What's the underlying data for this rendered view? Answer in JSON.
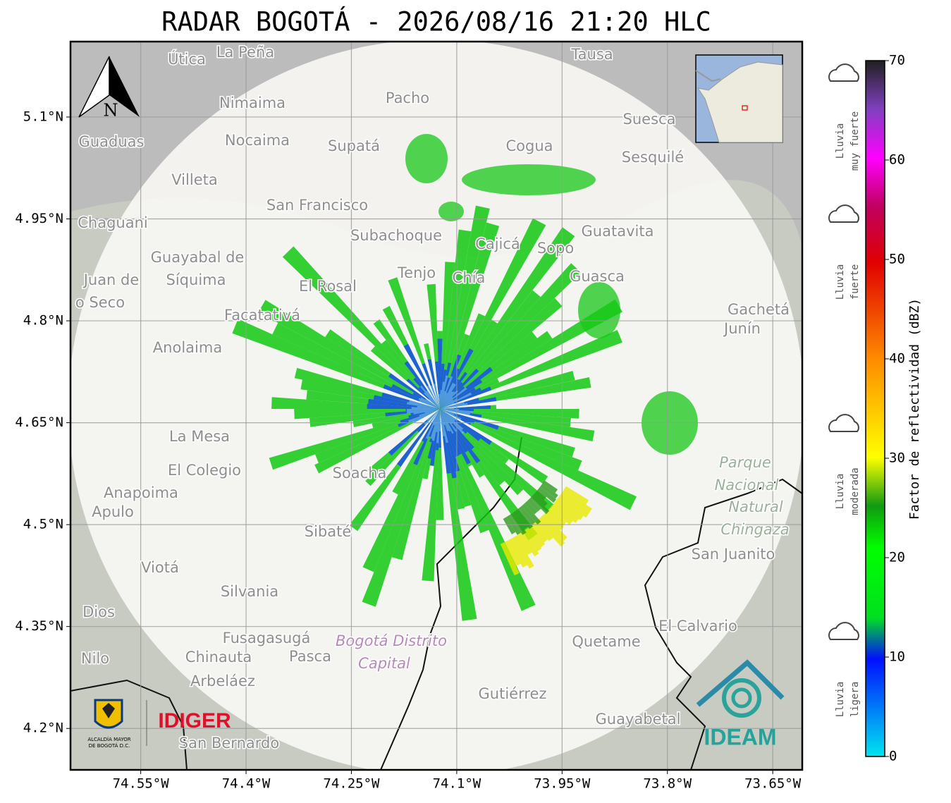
{
  "title": "RADAR BOGOTÁ - 2026/08/16 21:20 HLC",
  "map": {
    "lon_range": [
      -74.65,
      -73.608
    ],
    "lat_range": [
      4.139,
      5.211
    ],
    "lon_ticks": [
      {
        "value": -74.55,
        "label": "74.55°W"
      },
      {
        "value": -74.4,
        "label": "74.4°W"
      },
      {
        "value": -74.25,
        "label": "74.25°W"
      },
      {
        "value": -74.1,
        "label": "74.1°W"
      },
      {
        "value": -73.95,
        "label": "73.95°W"
      },
      {
        "value": -73.8,
        "label": "73.8°W"
      },
      {
        "value": -73.65,
        "label": "73.65°W"
      }
    ],
    "lat_ticks": [
      {
        "value": 5.1,
        "label": "5.1°N"
      },
      {
        "value": 4.95,
        "label": "4.95°N"
      },
      {
        "value": 4.8,
        "label": "4.8°N"
      },
      {
        "value": 4.65,
        "label": "4.65°N"
      },
      {
        "value": 4.5,
        "label": "4.5°N"
      },
      {
        "value": 4.35,
        "label": "4.35°N"
      },
      {
        "value": 4.2,
        "label": "4.2°N"
      }
    ],
    "north_label": "N",
    "places": [
      "Útica",
      "La Peña",
      "Tausa",
      "Pacho",
      "Nimaima",
      "Guaduas",
      "Nocaima",
      "Supatá",
      "Cogua",
      "Suesca",
      "Sesquilé",
      "Villeta",
      "San Francisco",
      "Chaguani",
      "Subachoque",
      "Cajicá",
      "Sopo",
      "Guatavita",
      "Guayabal de",
      "Síquima",
      "Juan de",
      "o Seco",
      "Tenjo",
      "Chía",
      "Guasca",
      "El Rosal",
      "Facatativá",
      "Gachetá",
      "Junín",
      "Anolaima",
      "La Mesa",
      "El Colegio",
      "Soacha",
      "Anapoima",
      "Apulo",
      "Parque",
      "Nacional",
      "Natural",
      "Chingaza",
      "San Juanito",
      "Sibaté",
      "Viotá",
      "Silvania",
      "Dios",
      "El Calvario",
      "Fusagasugá",
      "Bogotá Distrito",
      "Capital",
      "Quetame",
      "Nilo",
      "Chinauta",
      "Pasca",
      "Arbeláez",
      "Gutiérrez",
      "Guayabetal",
      "San Bernardo"
    ]
  },
  "colorbar": {
    "label": "Factor de reflectividad (dBZ)",
    "range": [
      0,
      70
    ],
    "ticks": [
      0,
      10,
      20,
      30,
      40,
      50,
      60,
      70
    ]
  },
  "rain_levels": [
    [
      "Lluvia",
      "muy fuerte"
    ],
    [
      "Lluvia",
      "fuerte"
    ],
    [
      "Lluvia",
      "moderada"
    ],
    [
      "Lluvia",
      "ligera"
    ]
  ],
  "logos": {
    "alcaldia": [
      "ALCALDÍA MAYOR",
      "DE BOGOTÁ D.C."
    ],
    "idiger": "IDIGER",
    "ideam": "IDEAM"
  }
}
